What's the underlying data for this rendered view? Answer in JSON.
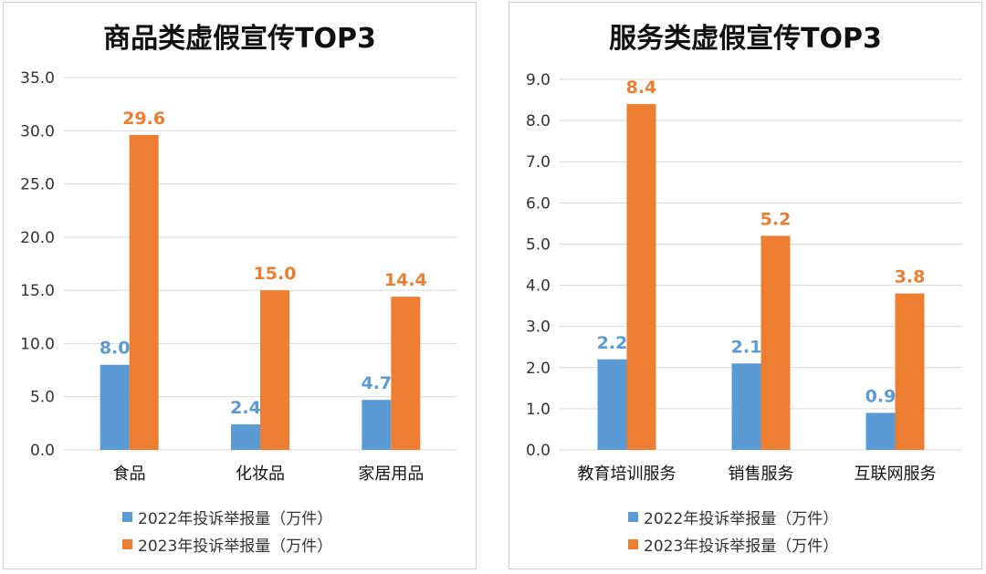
{
  "colors": {
    "series_2022": "#5b9bd5",
    "series_2023": "#ed7d31",
    "grid": "#d9d9d9",
    "axis_text": "#333333"
  },
  "chart_data": [
    {
      "type": "bar",
      "title": "商品类虚假宣传TOP3",
      "categories": [
        "食品",
        "化妆品",
        "家居用品"
      ],
      "series": [
        {
          "name": "2022年投诉举报量（万件）",
          "values": [
            8.0,
            2.4,
            4.7
          ],
          "labels": [
            "8.0",
            "2.4",
            "4.7"
          ]
        },
        {
          "name": "2023年投诉举报量（万件）",
          "values": [
            29.6,
            15.0,
            14.4
          ],
          "labels": [
            "29.6",
            "15.0",
            "14.4"
          ]
        }
      ],
      "yticks": [
        "0.0",
        "5.0",
        "10.0",
        "15.0",
        "20.0",
        "25.0",
        "30.0",
        "35.0"
      ],
      "ylim": [
        0,
        35
      ],
      "grid": true,
      "legend_position": "bottom"
    },
    {
      "type": "bar",
      "title": "服务类虚假宣传TOP3",
      "categories": [
        "教育培训服务",
        "销售服务",
        "互联网服务"
      ],
      "series": [
        {
          "name": "2022年投诉举报量（万件）",
          "values": [
            2.2,
            2.1,
            0.9
          ],
          "labels": [
            "2.2",
            "2.1",
            "0.9"
          ]
        },
        {
          "name": "2023年投诉举报量（万件）",
          "values": [
            8.4,
            5.2,
            3.8
          ],
          "labels": [
            "8.4",
            "5.2",
            "3.8"
          ]
        }
      ],
      "yticks": [
        "0.0",
        "1.0",
        "2.0",
        "3.0",
        "4.0",
        "5.0",
        "6.0",
        "7.0",
        "8.0",
        "9.0"
      ],
      "ylim": [
        0,
        9
      ],
      "grid": true,
      "legend_position": "bottom"
    }
  ]
}
